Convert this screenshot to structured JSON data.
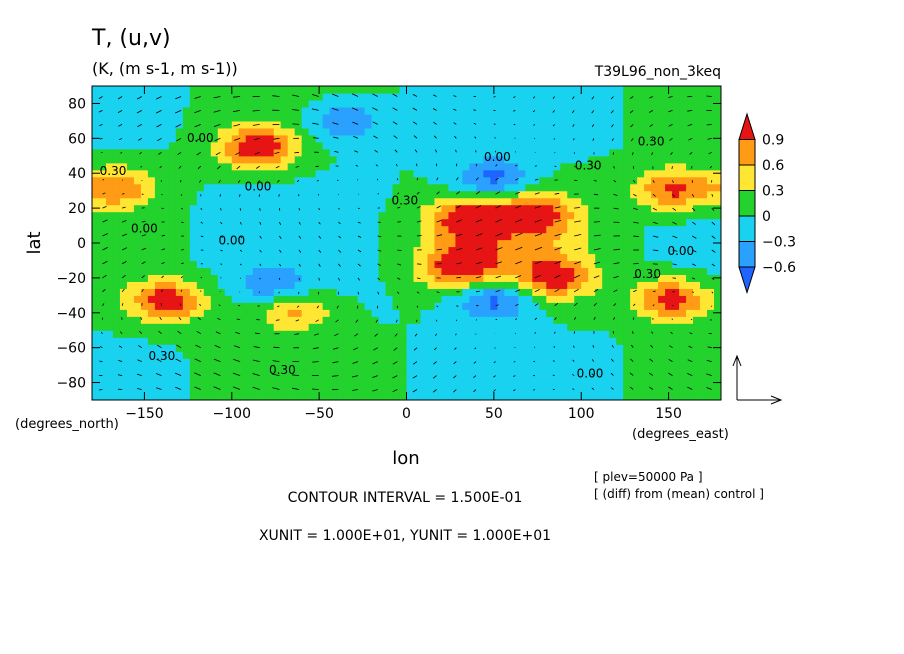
{
  "header": {
    "title": "T, (u,v)",
    "units": "(K, (m s-1, m s-1))",
    "run_id": "T39L96_non_3keq"
  },
  "footer": {
    "contour_interval": "CONTOUR INTERVAL = 1.500E-01",
    "vector_units": "XUNIT = 1.000E+01, YUNIT = 1.000E+01",
    "level_note": "[ plev=50000 Pa ]",
    "diff_note": "[ (diff) from (mean) control ]"
  },
  "colors": {
    "below_-0.6": "#1e64ff",
    "-0.6_to_-0.3": "#2aa0ff",
    "-0.3_to_0": "#19d2f0",
    "0_to_0.3": "#23d22d",
    "0.3_to_0.6": "#ffe632",
    "0.6_to_0.9": "#ff9b14",
    "above_0.9": "#e61414"
  },
  "chart_data": {
    "type": "heatmap",
    "title": "T, (u,v)",
    "xlabel": "lon",
    "ylabel": "lat",
    "x_unit_label": "(degrees_east)",
    "y_unit_label": "(degrees_north)",
    "xlim": [
      -180,
      180
    ],
    "ylim": [
      -90,
      90
    ],
    "xticks": [
      -150,
      -100,
      -50,
      0,
      50,
      100,
      150
    ],
    "yticks": [
      80,
      60,
      40,
      20,
      0,
      -20,
      -40,
      -60,
      -80
    ],
    "colorbar": {
      "levels": [
        -0.6,
        -0.3,
        0,
        0.3,
        0.6,
        0.9
      ],
      "labels": [
        "0.9",
        "0.6",
        "0.3",
        "0",
        "−0.3",
        "−0.6"
      ]
    },
    "contour_labels": [
      {
        "text": "0.00",
        "lon": -118,
        "lat": 58
      },
      {
        "text": "0.30",
        "lon": -168,
        "lat": 39
      },
      {
        "text": "0.00",
        "lon": -85,
        "lat": 30
      },
      {
        "text": "0.00",
        "lon": -150,
        "lat": 6
      },
      {
        "text": "0.00",
        "lon": -100,
        "lat": -1
      },
      {
        "text": "0.30",
        "lon": -1,
        "lat": 22
      },
      {
        "text": "0.00",
        "lon": 52,
        "lat": 47
      },
      {
        "text": "0.30",
        "lon": 104,
        "lat": 42
      },
      {
        "text": "0.30",
        "lon": 140,
        "lat": 56
      },
      {
        "text": "0.00",
        "lon": 157,
        "lat": -7
      },
      {
        "text": "0.30",
        "lon": -140,
        "lat": -67
      },
      {
        "text": "0.30",
        "lon": -71,
        "lat": -75
      },
      {
        "text": "0.00",
        "lon": 105,
        "lat": -77
      },
      {
        "text": "0.30",
        "lon": 138,
        "lat": -20
      }
    ],
    "features": [
      {
        "kind": "max",
        "lon": -85,
        "lat": 55,
        "amp": 1.2
      },
      {
        "kind": "max",
        "lon": 153,
        "lat": 31,
        "amp": 1.0
      },
      {
        "kind": "max",
        "lon": -165,
        "lat": 32,
        "amp": 0.8
      },
      {
        "kind": "max",
        "lon": 35,
        "lat": 15,
        "amp": 0.9
      },
      {
        "kind": "max",
        "lon": 75,
        "lat": 18,
        "amp": 0.85
      },
      {
        "kind": "max",
        "lon": 30,
        "lat": -14,
        "amp": 0.95
      },
      {
        "kind": "max",
        "lon": 85,
        "lat": -20,
        "amp": 0.9
      },
      {
        "kind": "max",
        "lon": -137,
        "lat": -33,
        "amp": 1.1
      },
      {
        "kind": "max",
        "lon": 152,
        "lat": -32,
        "amp": 1.1
      },
      {
        "kind": "max",
        "lon": -65,
        "lat": -38,
        "amp": 0.75
      },
      {
        "kind": "min",
        "lon": 50,
        "lat": 37,
        "amp": -0.75
      },
      {
        "kind": "min",
        "lon": 50,
        "lat": -32,
        "amp": -0.8
      },
      {
        "kind": "min",
        "lon": -35,
        "lat": 70,
        "amp": -0.6
      },
      {
        "kind": "min",
        "lon": -75,
        "lat": -25,
        "amp": -0.55
      }
    ]
  }
}
